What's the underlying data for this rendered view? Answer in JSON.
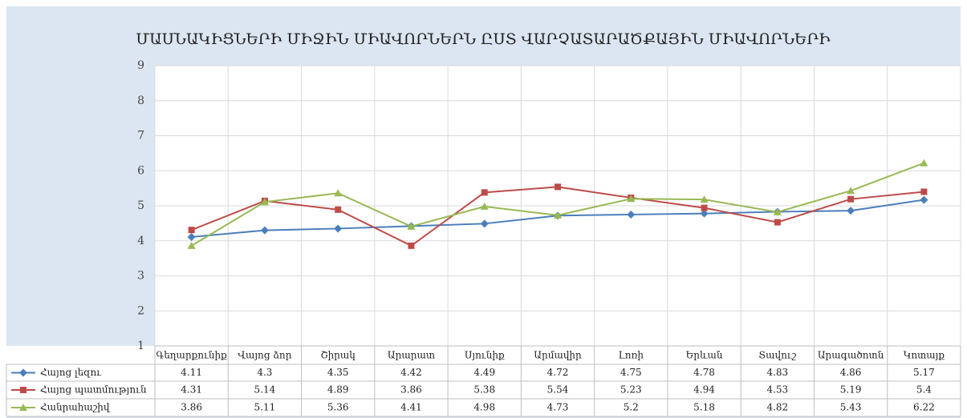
{
  "chart_data": {
    "type": "line",
    "title": "ՄԱՍՆԱԿԻՑՆԵՐԻ ՄԻՋԻՆ ՄԻԱՎՈՐՆԵՐՆ ԸՍՏ ՎԱՐՉԱՏԱՐԱԾՔԱՅԻՆ ՄԻԱՎՈՐՆԵՐԻ",
    "categories": [
      "Գեղարքունիք",
      "Վայոց ձոր",
      "Շիրակ",
      "Արարատ",
      "Սյունիք",
      "Արմավիր",
      "Լոռի",
      "Երևան",
      "Տավուշ",
      "Արագածոտն",
      "Կոտայք"
    ],
    "series": [
      {
        "name": "Հայոց լեզու",
        "color": "#4a7ebb",
        "marker": "diamond",
        "values": [
          4.11,
          4.3,
          4.35,
          4.42,
          4.49,
          4.72,
          4.75,
          4.78,
          4.83,
          4.86,
          5.17
        ]
      },
      {
        "name": "Հայոց պատմություն",
        "color": "#be4b48",
        "marker": "square",
        "values": [
          4.31,
          5.14,
          4.89,
          3.86,
          5.38,
          5.54,
          5.23,
          4.94,
          4.53,
          5.19,
          5.4
        ]
      },
      {
        "name": "Հանրահաշիվ",
        "color": "#98b954",
        "marker": "triangle",
        "values": [
          3.86,
          5.11,
          5.36,
          4.41,
          4.98,
          4.73,
          5.2,
          5.18,
          4.82,
          5.43,
          6.22
        ]
      }
    ],
    "ylim": [
      1,
      9
    ],
    "yticks": [
      1,
      2,
      3,
      4,
      5,
      6,
      7,
      8,
      9
    ],
    "grid": true,
    "data_table": true
  }
}
